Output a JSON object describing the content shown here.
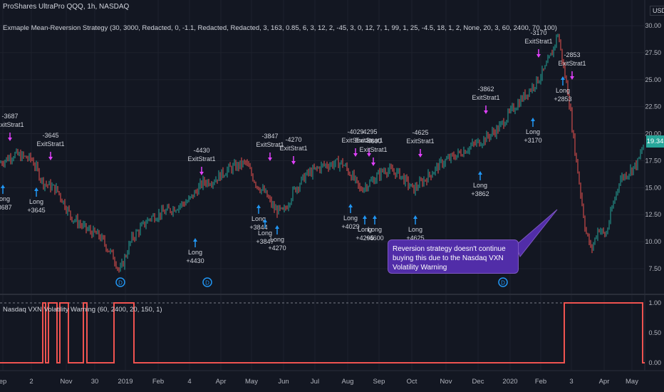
{
  "header": {
    "symbol_line": "ProShares UltraPro QQQ, 1h, NASDAQ",
    "strategy_line": "Exmaple Mean-Reversion Strategy (30, 3000, Redacted, 0, -1.1, Redacted, Redacted, 3, 163, 0.85, 6, 3, 12, 2, -45, 3, 0, 12, 7, 1, 99, 1, 25, -4.5, 18, 1, 2, None, 20, 3, 60, 2400, 70, 100)",
    "currency_label": "USD"
  },
  "indicator": {
    "title": "Nasdaq VXN Volatility Warning (60, 2400, 20, 150, 1)",
    "scale_labels": [
      "1.00",
      "0.50",
      "0.00"
    ]
  },
  "price_scale": {
    "labels": [
      "30.00",
      "27.50",
      "25.00",
      "22.50",
      "20.00",
      "17.50",
      "15.00",
      "12.50",
      "10.00",
      "7.50"
    ],
    "current_price": "19.34"
  },
  "time_axis": {
    "labels": [
      "ep",
      "2",
      "Nov",
      "30",
      "2019",
      "Feb",
      "4",
      "Apr",
      "May",
      "Jun",
      "Jul",
      "Aug",
      "Sep",
      "Oct",
      "Nov",
      "Dec",
      "2020",
      "Feb",
      "3",
      "Apr",
      "May"
    ]
  },
  "annotation": {
    "text": "Reversion strategy doesn't continue buying this due to the Nasdaq VXN Volatility Warning"
  },
  "markers": {
    "exit_label": "ExitStrat1",
    "long_label": "Long",
    "exit_values": [
      "-3687",
      "-3645",
      "-4430",
      "-3847",
      "-4270",
      "-4029",
      "-4295",
      "-4600",
      "-4625",
      "-3862",
      "-3170",
      "-2853"
    ],
    "long_values": [
      "+3687",
      "+3645",
      "+4430",
      "+3844",
      "+3847",
      "+4270",
      "+4029",
      "+4295",
      "+4600",
      "+4625",
      "+3862",
      "+3170",
      "+2853"
    ]
  },
  "dividend_badge": "D",
  "colors": {
    "background": "#131722",
    "up": "#26a69a",
    "down": "#ef5350",
    "exit_arrow": "#e040fb",
    "long_arrow": "#2196f3",
    "indicator_line": "#ef5350",
    "indicator_line_low": "#9c27b0",
    "note_bg": "#512da8"
  }
}
